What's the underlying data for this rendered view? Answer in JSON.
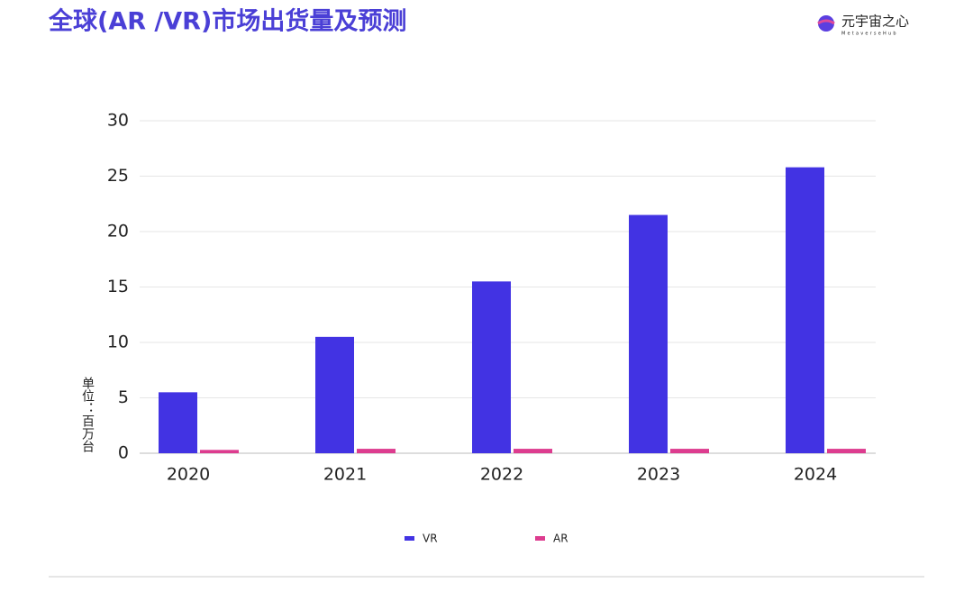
{
  "chart_data": {
    "type": "bar",
    "title": "全球(AR /VR)市场出货量及预测",
    "brand": "元宇宙之心",
    "brand_sub": "MetaverseHub",
    "y_label": "单位：百万台",
    "categories": [
      "2020",
      "2021",
      "2022",
      "2023",
      "2024"
    ],
    "series": [
      {
        "name": "VR",
        "color": "#4233e3",
        "values": [
          5.5,
          10.5,
          15.5,
          21.5,
          25.8
        ]
      },
      {
        "name": "AR",
        "color": "#dd3c8f",
        "values": [
          0.3,
          0.4,
          0.4,
          0.4,
          0.4
        ]
      }
    ],
    "ylim": [
      0,
      30
    ],
    "yticks": [
      0,
      5,
      10,
      15,
      20,
      25,
      30
    ],
    "grid": true
  }
}
